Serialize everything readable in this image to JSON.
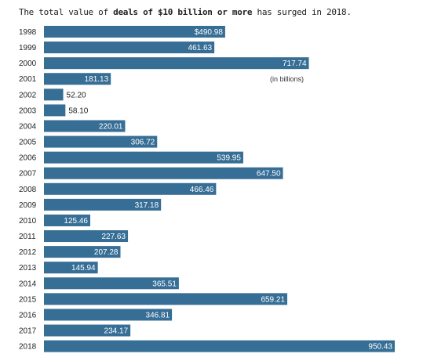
{
  "title": {
    "prefix": "The total value of ",
    "bold": "deals of $10 billion or more",
    "suffix": " has surged in 2018."
  },
  "colors": {
    "bar": "#366e96",
    "label_inside": "#ffffff",
    "label_outside": "#222222"
  },
  "chart_data": {
    "type": "bar",
    "orientation": "horizontal",
    "annotation": "(in billions)",
    "categories": [
      "1998",
      "1999",
      "2000",
      "2001",
      "2002",
      "2003",
      "2004",
      "2005",
      "2006",
      "2007",
      "2008",
      "2009",
      "2010",
      "2011",
      "2012",
      "2013",
      "2014",
      "2015",
      "2016",
      "2017",
      "2018"
    ],
    "values": [
      490.98,
      461.63,
      717.74,
      181.13,
      52.2,
      58.1,
      220.01,
      306.72,
      539.95,
      647.5,
      466.46,
      317.18,
      125.46,
      227.63,
      207.28,
      145.94,
      365.51,
      659.21,
      346.81,
      234.17,
      950.43
    ],
    "value_labels": [
      "$490.98",
      "461.63",
      "717.74",
      "181.13",
      "52.20",
      "58.10",
      "220.01",
      "306.72",
      "539.95",
      "647.50",
      "466.46",
      "317.18",
      "125.46",
      "227.63",
      "207.28",
      "145.94",
      "365.51",
      "659.21",
      "346.81",
      "234.17",
      "950.43"
    ],
    "grid": false
  }
}
